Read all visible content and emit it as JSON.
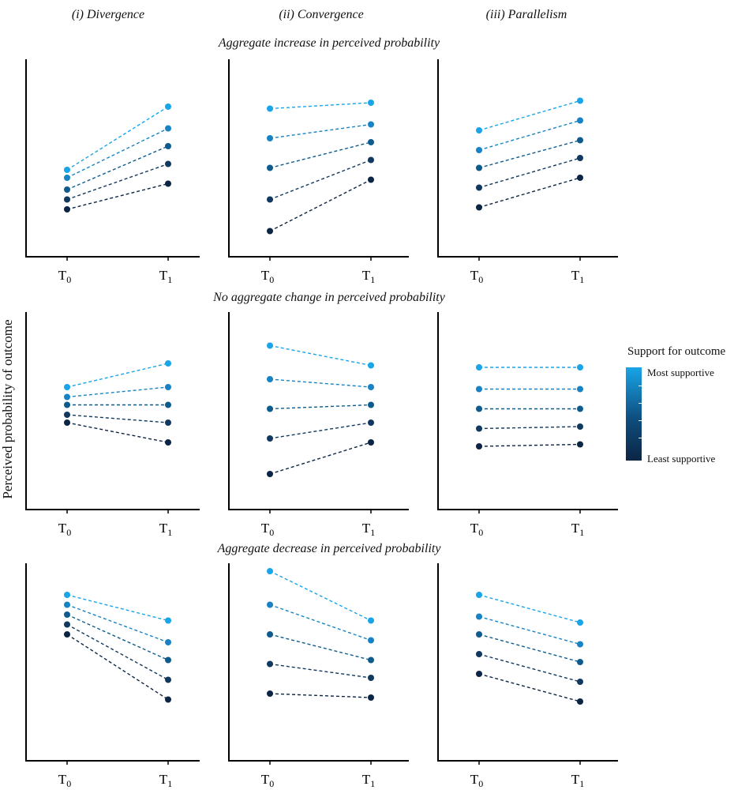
{
  "figure": {
    "column_titles": [
      "(i) Divergence",
      "(ii) Convergence",
      "(iii) Parallelism"
    ],
    "row_titles": [
      "Aggregate increase in perceived probability",
      "No aggregate change in perceived probability",
      "Aggregate decrease in perceived probability"
    ],
    "ylabel": "Perceived probability of outcome",
    "legend": {
      "title": "Support for outcome",
      "high_label": "Most supportive",
      "low_label": "Least supportive",
      "colors": [
        "#0c2544",
        "#11395f",
        "#0e5c8e",
        "#1883c4",
        "#19a5e8"
      ]
    }
  },
  "chart_data": {
    "type": "line",
    "x_ticks": [
      "T0",
      "T1"
    ],
    "ylim": [
      0,
      100
    ],
    "grid": false,
    "legend_position": "right",
    "panels": [
      {
        "row": 0,
        "col": 0,
        "t0": [
          24,
          29,
          34,
          40,
          44
        ],
        "t1": [
          37,
          47,
          56,
          65,
          76
        ]
      },
      {
        "row": 0,
        "col": 1,
        "t0": [
          13,
          29,
          45,
          60,
          75
        ],
        "t1": [
          39,
          49,
          58,
          67,
          78
        ]
      },
      {
        "row": 0,
        "col": 2,
        "t0": [
          25,
          35,
          45,
          54,
          64
        ],
        "t1": [
          40,
          50,
          59,
          69,
          79
        ]
      },
      {
        "row": 1,
        "col": 0,
        "t0": [
          44,
          48,
          53,
          57,
          62
        ],
        "t1": [
          34,
          44,
          53,
          62,
          74
        ]
      },
      {
        "row": 1,
        "col": 1,
        "t0": [
          18,
          36,
          51,
          66,
          83
        ],
        "t1": [
          34,
          44,
          53,
          62,
          73
        ]
      },
      {
        "row": 1,
        "col": 2,
        "t0": [
          32,
          41,
          51,
          61,
          72
        ],
        "t1": [
          33,
          42,
          51,
          61,
          72
        ]
      },
      {
        "row": 2,
        "col": 0,
        "t0": [
          64,
          69,
          74,
          79,
          84
        ],
        "t1": [
          31,
          41,
          51,
          60,
          71
        ]
      },
      {
        "row": 2,
        "col": 1,
        "t0": [
          34,
          49,
          64,
          79,
          96
        ],
        "t1": [
          32,
          42,
          51,
          61,
          71
        ]
      },
      {
        "row": 2,
        "col": 2,
        "t0": [
          44,
          54,
          64,
          73,
          84
        ],
        "t1": [
          30,
          40,
          50,
          59,
          70
        ]
      }
    ]
  }
}
